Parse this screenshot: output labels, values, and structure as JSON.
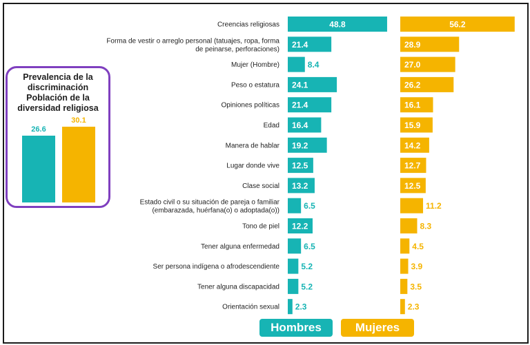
{
  "colors": {
    "men": "#17b4b4",
    "women": "#f5b400",
    "inset_border": "#7f3fbf"
  },
  "inset": {
    "title_lines": [
      "Prevalencia de la",
      "discriminación",
      "Población de la",
      "diversidad religiosa"
    ],
    "men_value": "26.6",
    "women_value": "30.1"
  },
  "legend": {
    "men": "Hombres",
    "women": "Mujeres"
  },
  "chart_data": {
    "type": "bar",
    "categories": [
      [
        "Creencias religiosas"
      ],
      [
        "Forma de vestir o arreglo personal (tatuajes, ropa, forma",
        "de peinarse, perforaciones)"
      ],
      [
        "Mujer (Hombre)"
      ],
      [
        "Peso o estatura"
      ],
      [
        "Opiniones políticas"
      ],
      [
        "Edad"
      ],
      [
        "Manera de hablar"
      ],
      [
        "Lugar donde vive"
      ],
      [
        "Clase social"
      ],
      [
        "Estado civil o su situación de pareja o familiar",
        "(embarazada, huérfana(o) o adoptada(o))"
      ],
      [
        "Tono de piel"
      ],
      [
        "Tener alguna enfermedad"
      ],
      [
        "Ser persona indígena o afrodescendiente"
      ],
      [
        "Tener alguna discapacidad"
      ],
      [
        "Orientación sexual"
      ]
    ],
    "series": [
      {
        "name": "Hombres",
        "values": [
          48.8,
          21.4,
          8.4,
          24.1,
          21.4,
          16.4,
          19.2,
          12.5,
          13.2,
          6.5,
          12.2,
          6.5,
          5.2,
          5.2,
          2.3
        ]
      },
      {
        "name": "Mujeres",
        "values": [
          56.2,
          28.9,
          27.0,
          26.2,
          16.1,
          15.9,
          14.2,
          12.7,
          12.5,
          11.2,
          8.3,
          4.5,
          3.9,
          3.5,
          2.3
        ]
      }
    ],
    "inset_chart": {
      "type": "bar",
      "categories": [
        "Hombres",
        "Mujeres"
      ],
      "values": [
        26.6,
        30.1
      ]
    }
  }
}
